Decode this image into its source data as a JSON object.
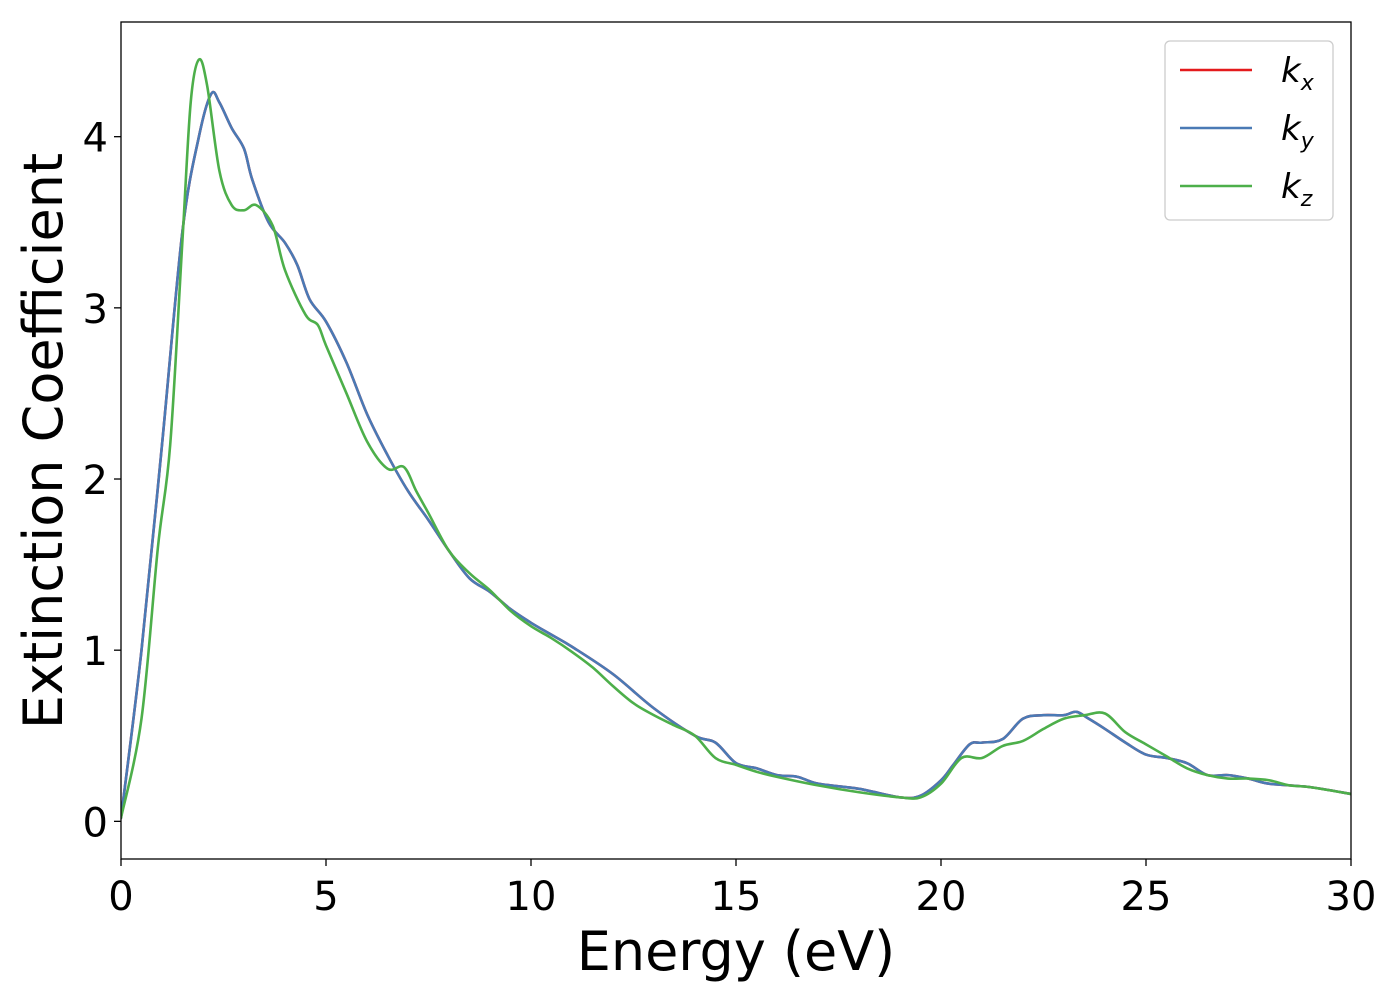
{
  "chart_data": {
    "type": "line",
    "title": "",
    "xlabel": "Energy (eV)",
    "ylabel": "Extinction Coefficient",
    "xlim": [
      0,
      30
    ],
    "ylim": [
      -0.22,
      4.67
    ],
    "xticks": [
      0,
      5,
      10,
      15,
      20,
      25,
      30
    ],
    "yticks": [
      0,
      1,
      2,
      3,
      4
    ],
    "grid": false,
    "legend_position": "top-right",
    "series": [
      {
        "name": "k_x",
        "legend_base": "k",
        "legend_sub": "x",
        "color": "#e41a1c",
        "x": [
          0,
          0.5,
          1.0,
          1.5,
          1.9,
          2.2,
          2.4,
          2.7,
          3.0,
          3.2,
          3.6,
          4.0,
          4.3,
          4.6,
          5.0,
          5.5,
          6.0,
          6.5,
          7.0,
          7.5,
          8.0,
          8.5,
          9.0,
          9.5,
          10.0,
          10.5,
          11.0,
          12.0,
          13.0,
          14.0,
          14.5,
          15.0,
          15.5,
          16.0,
          16.5,
          17.0,
          18.0,
          19.0,
          19.5,
          20.0,
          20.3,
          20.7,
          21.0,
          21.5,
          22.0,
          22.5,
          23.0,
          23.3,
          23.6,
          24.0,
          24.5,
          25.0,
          25.5,
          26.0,
          26.5,
          27.0,
          27.5,
          28.0,
          29.0,
          30.0
        ],
        "y": [
          0.02,
          1.0,
          2.2,
          3.45,
          4.0,
          4.25,
          4.2,
          4.05,
          3.93,
          3.75,
          3.5,
          3.38,
          3.25,
          3.05,
          2.92,
          2.68,
          2.38,
          2.14,
          1.93,
          1.76,
          1.58,
          1.42,
          1.34,
          1.24,
          1.16,
          1.09,
          1.02,
          0.86,
          0.66,
          0.5,
          0.46,
          0.34,
          0.31,
          0.27,
          0.26,
          0.22,
          0.19,
          0.14,
          0.15,
          0.24,
          0.33,
          0.45,
          0.46,
          0.48,
          0.6,
          0.62,
          0.62,
          0.64,
          0.6,
          0.54,
          0.46,
          0.39,
          0.37,
          0.34,
          0.27,
          0.27,
          0.25,
          0.22,
          0.2,
          0.16
        ]
      },
      {
        "name": "k_y",
        "legend_base": "k",
        "legend_sub": "y",
        "color": "#4a7ab5",
        "x": [
          0,
          0.5,
          1.0,
          1.5,
          1.9,
          2.2,
          2.4,
          2.7,
          3.0,
          3.2,
          3.6,
          4.0,
          4.3,
          4.6,
          5.0,
          5.5,
          6.0,
          6.5,
          7.0,
          7.5,
          8.0,
          8.5,
          9.0,
          9.5,
          10.0,
          10.5,
          11.0,
          12.0,
          13.0,
          14.0,
          14.5,
          15.0,
          15.5,
          16.0,
          16.5,
          17.0,
          18.0,
          19.0,
          19.5,
          20.0,
          20.3,
          20.7,
          21.0,
          21.5,
          22.0,
          22.5,
          23.0,
          23.3,
          23.6,
          24.0,
          24.5,
          25.0,
          25.5,
          26.0,
          26.5,
          27.0,
          27.5,
          28.0,
          29.0,
          30.0
        ],
        "y": [
          0.02,
          1.0,
          2.2,
          3.45,
          4.0,
          4.25,
          4.2,
          4.05,
          3.93,
          3.75,
          3.5,
          3.38,
          3.25,
          3.05,
          2.92,
          2.68,
          2.38,
          2.14,
          1.93,
          1.76,
          1.58,
          1.42,
          1.34,
          1.24,
          1.16,
          1.09,
          1.02,
          0.86,
          0.66,
          0.5,
          0.46,
          0.34,
          0.31,
          0.27,
          0.26,
          0.22,
          0.19,
          0.14,
          0.15,
          0.24,
          0.33,
          0.45,
          0.46,
          0.48,
          0.6,
          0.62,
          0.62,
          0.64,
          0.6,
          0.54,
          0.46,
          0.39,
          0.37,
          0.34,
          0.27,
          0.27,
          0.25,
          0.22,
          0.2,
          0.16
        ]
      },
      {
        "name": "k_z",
        "legend_base": "k",
        "legend_sub": "z",
        "color": "#4daf4a",
        "x": [
          0,
          0.5,
          0.9,
          1.2,
          1.5,
          1.7,
          1.9,
          2.1,
          2.4,
          2.7,
          3.0,
          3.3,
          3.7,
          4.0,
          4.5,
          4.8,
          5.0,
          5.5,
          6.0,
          6.5,
          6.9,
          7.2,
          7.5,
          8.0,
          8.5,
          9.0,
          9.5,
          10.0,
          10.5,
          11.0,
          11.5,
          12.0,
          12.5,
          13.0,
          13.5,
          14.0,
          14.5,
          15.0,
          15.5,
          16.0,
          17.0,
          18.0,
          19.0,
          19.5,
          20.0,
          20.5,
          21.0,
          21.5,
          22.0,
          22.5,
          23.0,
          23.5,
          24.0,
          24.5,
          25.0,
          25.5,
          26.0,
          26.5,
          27.0,
          27.5,
          28.0,
          28.5,
          29.0,
          30.0
        ],
        "y": [
          0.02,
          0.6,
          1.6,
          2.2,
          3.4,
          4.2,
          4.45,
          4.3,
          3.8,
          3.6,
          3.57,
          3.6,
          3.48,
          3.22,
          2.96,
          2.9,
          2.78,
          2.5,
          2.22,
          2.06,
          2.07,
          1.93,
          1.8,
          1.58,
          1.45,
          1.35,
          1.23,
          1.14,
          1.07,
          0.99,
          0.9,
          0.79,
          0.69,
          0.62,
          0.56,
          0.5,
          0.37,
          0.33,
          0.29,
          0.26,
          0.21,
          0.17,
          0.14,
          0.14,
          0.22,
          0.37,
          0.37,
          0.44,
          0.47,
          0.54,
          0.6,
          0.62,
          0.63,
          0.52,
          0.45,
          0.38,
          0.31,
          0.27,
          0.25,
          0.25,
          0.24,
          0.21,
          0.2,
          0.16
        ]
      }
    ]
  }
}
